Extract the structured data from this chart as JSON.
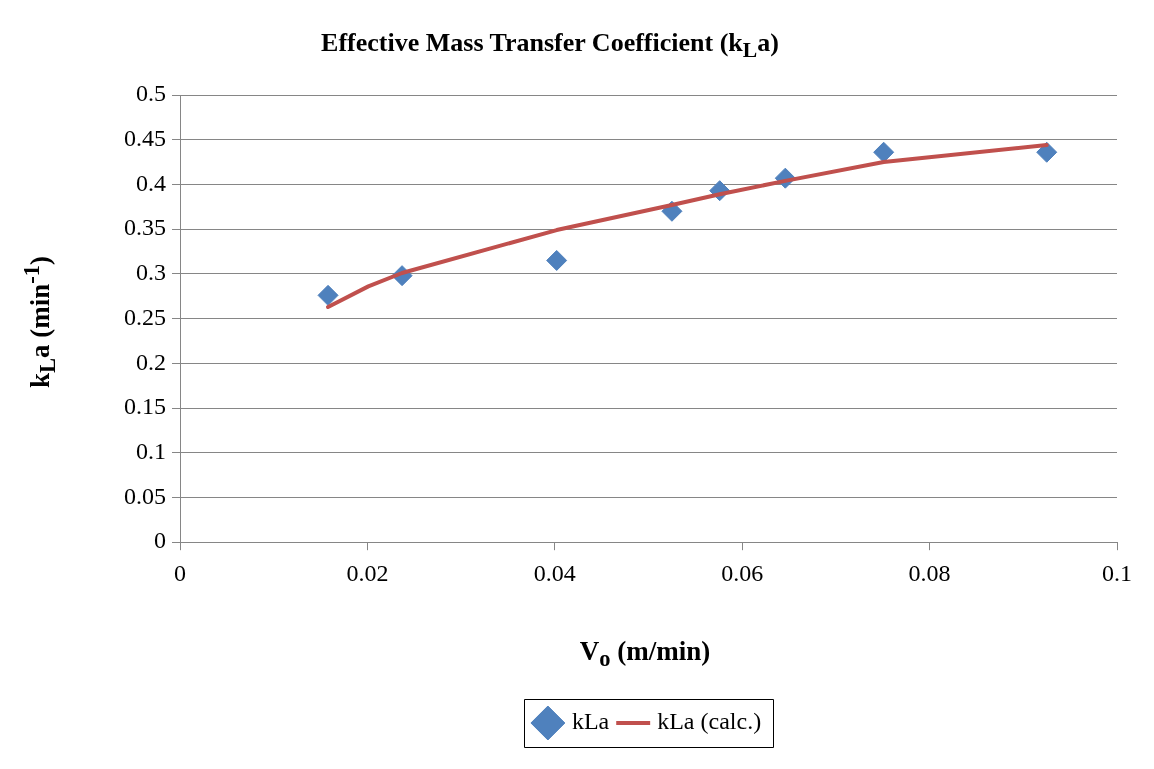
{
  "chart_data": {
    "type": "scatter",
    "title": "Effective Mass Transfer Coefficient (k$_{L}$a)",
    "xlabel": "V$_{o}$ (m/min)",
    "ylabel": "k$_{L}$a (min$^{-1}$)",
    "xlim": [
      0,
      0.1
    ],
    "xticks": [
      0,
      0.02,
      0.04,
      0.06,
      0.08,
      0.1
    ],
    "ylim": [
      0,
      0.5
    ],
    "yticks": [
      0,
      0.05,
      0.1,
      0.15,
      0.2,
      0.25,
      0.3,
      0.35,
      0.4,
      0.45,
      0.5
    ],
    "grid": "y",
    "legend": "bottom",
    "series": [
      {
        "name": "kLa",
        "marker": "diamond",
        "color": "#4f81bd",
        "x": [
          0.0158,
          0.0237,
          0.0402,
          0.0525,
          0.0576,
          0.0646,
          0.0751,
          0.0925
        ],
        "values": [
          0.276,
          0.298,
          0.315,
          0.37,
          0.393,
          0.407,
          0.436,
          0.436
        ]
      },
      {
        "name": "kLa (calc.)",
        "type": "line",
        "marker": "none",
        "color": "#c0504d",
        "x": [
          0.0158,
          0.0201,
          0.0237,
          0.0402,
          0.0525,
          0.0576,
          0.0646,
          0.0751,
          0.0925
        ],
        "values": [
          0.263,
          0.286,
          0.301,
          0.349,
          0.377,
          0.389,
          0.404,
          0.425,
          0.444
        ]
      }
    ]
  }
}
